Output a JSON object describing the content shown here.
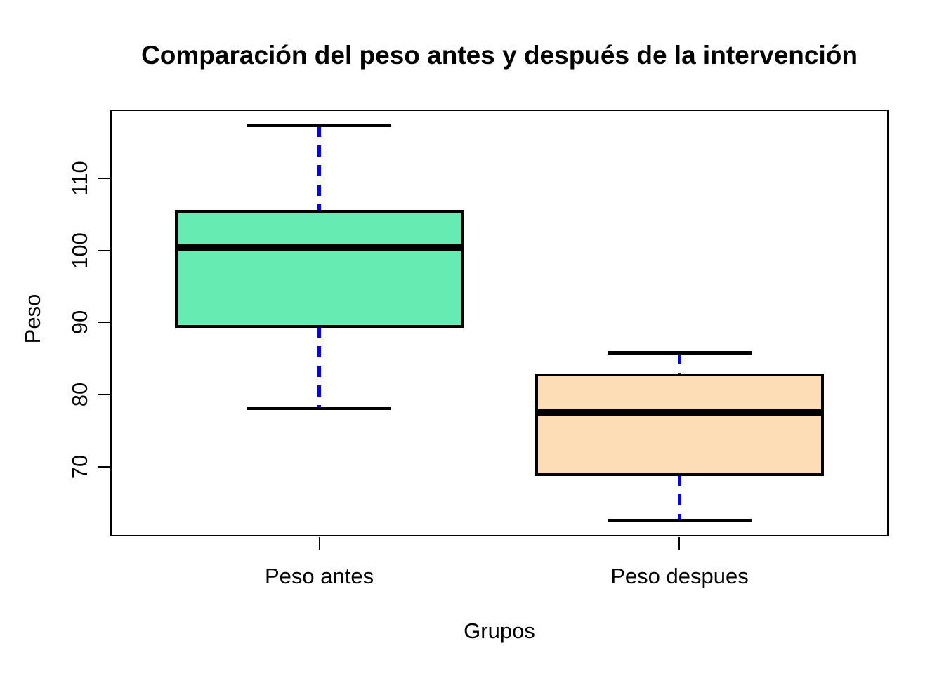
{
  "figure": {
    "background": "#FFFFFF"
  },
  "chart_data": {
    "type": "boxplot",
    "title": "Comparación del peso antes y después de la intervención",
    "xlabel": "Grupos",
    "ylabel": "Peso",
    "ylim": [
      60.4,
      119.5
    ],
    "yticks": [
      70,
      80,
      90,
      100,
      110
    ],
    "xlim": [
      0.42,
      2.58
    ],
    "box_width": 0.8,
    "staple_width": 0.4,
    "grid": false,
    "legend": null,
    "colors": {
      "whisker_dash": "#0000FF",
      "line": "#000000",
      "frame": "#000000"
    },
    "groups": [
      {
        "label": "Peso antes",
        "position": 1,
        "fill": "#66EBB2",
        "stats": {
          "whisker_low": 78.1,
          "q1": 89.5,
          "median": 100.4,
          "q3": 105.4,
          "whisker_high": 117.3
        }
      },
      {
        "label": "Peso despues",
        "position": 2,
        "fill": "#FDDDB5",
        "stats": {
          "whisker_low": 62.6,
          "q1": 69.0,
          "median": 77.6,
          "q3": 82.8,
          "whisker_high": 85.8
        }
      }
    ]
  }
}
